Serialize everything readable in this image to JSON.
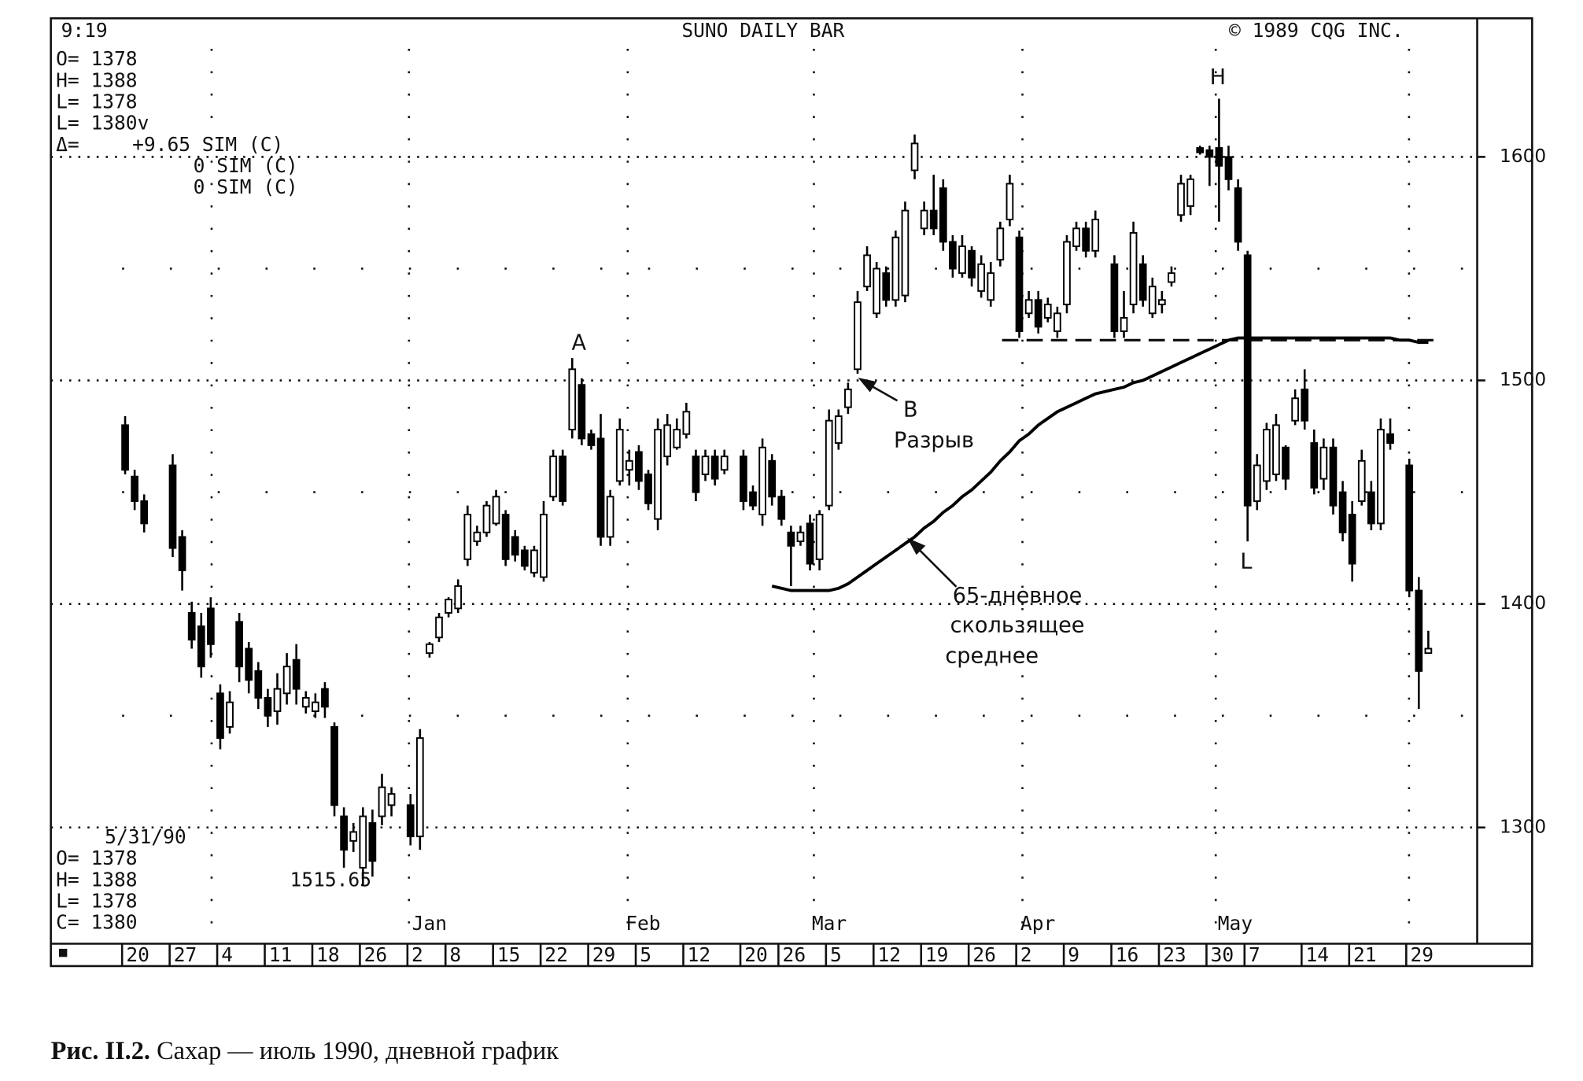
{
  "chart_data": {
    "type": "candlestick",
    "time": "9:19",
    "title": "SUNO DAILY BAR",
    "copyright": "© 1989 CQG INC.",
    "quote_top": [
      "O= 1378",
      "H= 1388",
      "L= 1378",
      "L= 1380v"
    ],
    "delta": [
      "Δ=",
      "+9.65 SIM (C)",
      "0 SIM (C)",
      "0 SIM (C)"
    ],
    "quote_bottom": [
      "5/31/90",
      "O= 1378",
      "H= 1388",
      "L= 1378",
      "C= 1380"
    ],
    "marker_value": "1515.65",
    "annotations": {
      "point_a": "A",
      "point_b": "B",
      "gap_label": "Разрыв",
      "peak": "H",
      "low": "L",
      "ma_label": [
        "65-дневное",
        "скользящее",
        "среднее"
      ]
    },
    "month_labels": [
      "Jan",
      "Feb",
      "Mar",
      "Apr",
      "May"
    ],
    "categories": [
      "20",
      null,
      null,
      null,
      null,
      "27",
      null,
      null,
      null,
      null,
      "4",
      null,
      null,
      null,
      null,
      "11",
      null,
      null,
      null,
      null,
      "18",
      null,
      null,
      null,
      null,
      "26",
      null,
      null,
      null,
      null,
      "2",
      null,
      null,
      null,
      "8",
      null,
      null,
      null,
      null,
      "15",
      null,
      null,
      null,
      null,
      "22",
      null,
      null,
      null,
      null,
      "29",
      null,
      null,
      null,
      null,
      "5",
      null,
      null,
      null,
      null,
      "12",
      null,
      null,
      null,
      null,
      null,
      "20",
      null,
      null,
      null,
      "26",
      null,
      null,
      null,
      null,
      "5",
      null,
      null,
      null,
      null,
      "12",
      null,
      null,
      null,
      null,
      "19",
      null,
      null,
      null,
      null,
      "26",
      null,
      null,
      null,
      null,
      "2",
      null,
      null,
      null,
      null,
      "9",
      null,
      null,
      null,
      null,
      "16",
      null,
      null,
      null,
      null,
      "23",
      null,
      null,
      null,
      null,
      "30",
      null,
      null,
      null,
      "7",
      null,
      null,
      null,
      null,
      null,
      "14",
      null,
      null,
      null,
      null,
      "21",
      null,
      null,
      null,
      null,
      null,
      "29",
      null,
      null
    ],
    "ohlc": {
      "open": [
        1480,
        1457,
        1446,
        null,
        null,
        1462,
        1430,
        1396,
        1390,
        1398,
        1360,
        1345,
        1392,
        1380,
        1370,
        1358,
        1352,
        1360,
        1375,
        1354,
        1352,
        1362,
        1345,
        1305,
        1294,
        1282,
        1302,
        1305,
        1310,
        null,
        1310,
        1296,
        1378,
        1385,
        1396,
        1398,
        1420,
        1428,
        1432,
        1436,
        1440,
        1430,
        1424,
        1414,
        1412,
        1448,
        1466,
        1478,
        1498,
        1476,
        1474,
        1430,
        1455,
        1460,
        1468,
        1458,
        1438,
        1466,
        1470,
        1476,
        1466,
        1458,
        1466,
        1460,
        null,
        1466,
        1450,
        1440,
        1464,
        1448,
        1432,
        1428,
        1436,
        1420,
        1444,
        1472,
        1488,
        1505,
        1542,
        1530,
        1548,
        1536,
        1538,
        1594,
        1568,
        1576,
        1586,
        1562,
        1548,
        1558,
        1540,
        1536,
        1554,
        1572,
        1564,
        1530,
        1536,
        1528,
        1522,
        1534,
        1560,
        1568,
        1558,
        null,
        1552,
        1522,
        1534,
        1552,
        1530,
        1534,
        1544,
        1574,
        1578,
        1604,
        1603,
        1604,
        1600,
        1586,
        1556,
        1446,
        1455,
        1458,
        1470,
        1482,
        1496,
        1472,
        1456,
        1470,
        1450,
        1440,
        1446,
        1450,
        1436,
        1476,
        null,
        1462,
        1406,
        1378
      ],
      "high": [
        1484,
        1460,
        1449,
        null,
        null,
        1467,
        1433,
        1401,
        1396,
        1403,
        1364,
        1361,
        1396,
        1383,
        1374,
        1362,
        1369,
        1378,
        1382,
        1361,
        1360,
        1365,
        1347,
        1309,
        1302,
        1309,
        1308,
        1324,
        1318,
        null,
        1315,
        1344,
        1383,
        1396,
        1403,
        1411,
        1444,
        1435,
        1446,
        1451,
        1442,
        1433,
        1426,
        1426,
        1446,
        1469,
        1469,
        1510,
        1501,
        1478,
        1485,
        1451,
        1483,
        1469,
        1471,
        1460,
        1483,
        1485,
        1483,
        1490,
        1469,
        1469,
        1469,
        1469,
        null,
        1469,
        1453,
        1474,
        1467,
        1451,
        1435,
        1435,
        1440,
        1442,
        1487,
        1487,
        1499,
        1540,
        1560,
        1553,
        1551,
        1567,
        1580,
        1610,
        1580,
        1592,
        1590,
        1565,
        1565,
        1560,
        1556,
        1553,
        1571,
        1592,
        1567,
        1540,
        1540,
        1537,
        1533,
        1565,
        1571,
        1571,
        1576,
        null,
        1556,
        1540,
        1571,
        1556,
        1546,
        1540,
        1551,
        1592,
        1592,
        1605,
        1605,
        1626,
        1605,
        1590,
        1558,
        1467,
        1481,
        1485,
        1471,
        1496,
        1505,
        1478,
        1474,
        1474,
        1455,
        1446,
        1469,
        1455,
        1483,
        1483,
        null,
        1465,
        1412,
        1388
      ],
      "low": [
        1458,
        1442,
        1432,
        null,
        null,
        1421,
        1406,
        1380,
        1367,
        1376,
        1335,
        1342,
        1365,
        1360,
        1353,
        1345,
        1346,
        1355,
        1355,
        1351,
        1349,
        1349,
        1305,
        1282,
        1289,
        1274,
        1278,
        1301,
        1305,
        null,
        1292,
        1290,
        1376,
        1383,
        1394,
        1396,
        1417,
        1426,
        1430,
        1435,
        1417,
        1419,
        1415,
        1412,
        1410,
        1446,
        1444,
        1474,
        1471,
        1469,
        1426,
        1426,
        1453,
        1453,
        1451,
        1442,
        1433,
        1462,
        1469,
        1474,
        1446,
        1455,
        1453,
        1458,
        null,
        1442,
        1442,
        1435,
        1444,
        1435,
        1408,
        1426,
        1415,
        1415,
        1442,
        1469,
        1485,
        1503,
        1540,
        1528,
        1533,
        1533,
        1535,
        1590,
        1565,
        1565,
        1558,
        1546,
        1546,
        1542,
        1537,
        1533,
        1551,
        1569,
        1519,
        1528,
        1521,
        1526,
        1519,
        1530,
        1558,
        1555,
        1555,
        null,
        1519,
        1519,
        1530,
        1533,
        1528,
        1530,
        1542,
        1571,
        1574,
        1601,
        1587,
        1571,
        1585,
        1558,
        1428,
        1442,
        1451,
        1455,
        1451,
        1480,
        1478,
        1449,
        1451,
        1440,
        1428,
        1410,
        1444,
        1433,
        1433,
        1469,
        null,
        1403,
        1353,
        1378
      ],
      "close": [
        1460,
        1446,
        1436,
        null,
        null,
        1425,
        1415,
        1384,
        1372,
        1382,
        1340,
        1356,
        1372,
        1366,
        1358,
        1350,
        1362,
        1372,
        1362,
        1358,
        1356,
        1354,
        1310,
        1290,
        1298,
        1305,
        1285,
        1318,
        1315,
        null,
        1296,
        1340,
        1382,
        1394,
        1402,
        1408,
        1440,
        1432,
        1444,
        1448,
        1420,
        1422,
        1417,
        1424,
        1440,
        1466,
        1446,
        1505,
        1474,
        1471,
        1430,
        1448,
        1478,
        1464,
        1455,
        1445,
        1478,
        1480,
        1478,
        1486,
        1450,
        1466,
        1456,
        1466,
        null,
        1446,
        1444,
        1470,
        1448,
        1438,
        1426,
        1432,
        1418,
        1440,
        1482,
        1484,
        1496,
        1535,
        1556,
        1550,
        1536,
        1564,
        1576,
        1606,
        1576,
        1568,
        1562,
        1550,
        1560,
        1546,
        1552,
        1548,
        1568,
        1588,
        1522,
        1536,
        1524,
        1534,
        1530,
        1562,
        1568,
        1558,
        1572,
        null,
        1522,
        1528,
        1566,
        1536,
        1542,
        1536,
        1548,
        1588,
        1590,
        1602,
        1600,
        1596,
        1590,
        1562,
        1444,
        1462,
        1478,
        1480,
        1456,
        1492,
        1482,
        1452,
        1470,
        1444,
        1432,
        1418,
        1464,
        1436,
        1478,
        1472,
        null,
        1406,
        1370,
        1380
      ]
    },
    "moving_average": [
      null,
      null,
      null,
      null,
      null,
      null,
      null,
      null,
      null,
      null,
      null,
      null,
      null,
      null,
      null,
      null,
      null,
      null,
      null,
      null,
      null,
      null,
      null,
      null,
      null,
      null,
      null,
      null,
      null,
      null,
      null,
      null,
      null,
      null,
      null,
      null,
      null,
      null,
      null,
      null,
      null,
      null,
      null,
      null,
      null,
      null,
      null,
      null,
      null,
      null,
      null,
      null,
      null,
      null,
      null,
      null,
      null,
      null,
      null,
      null,
      null,
      null,
      null,
      null,
      null,
      null,
      null,
      null,
      1408,
      1407,
      1406,
      1406,
      1406,
      1406,
      1406,
      1407,
      1409,
      1412,
      1415,
      1418,
      1421,
      1424,
      1427,
      1430,
      1434,
      1437,
      1441,
      1444,
      1448,
      1451,
      1455,
      1459,
      1464,
      1468,
      1473,
      1476,
      1480,
      1483,
      1486,
      1488,
      1490,
      1492,
      1494,
      1495,
      1496,
      1497,
      1499,
      1500,
      1502,
      1504,
      1506,
      1508,
      1510,
      1512,
      1514,
      1516,
      1518,
      1519,
      1519,
      1519,
      1519,
      1519,
      1519,
      1519,
      1519,
      1519,
      1519,
      1519,
      1519,
      1519,
      1519,
      1519,
      1519,
      1519,
      1518,
      1518,
      1517,
      1517
    ],
    "support_level": 1518,
    "ylim": [
      1248,
      1662
    ],
    "yticks": [
      1300,
      1400,
      1500,
      1600
    ],
    "minor_grid": [
      1350,
      1450,
      1550
    ],
    "grid": true,
    "color": "#000000"
  },
  "caption": {
    "label": "Рис. II.2.",
    "text": "Сахар — июль 1990, дневной график"
  }
}
